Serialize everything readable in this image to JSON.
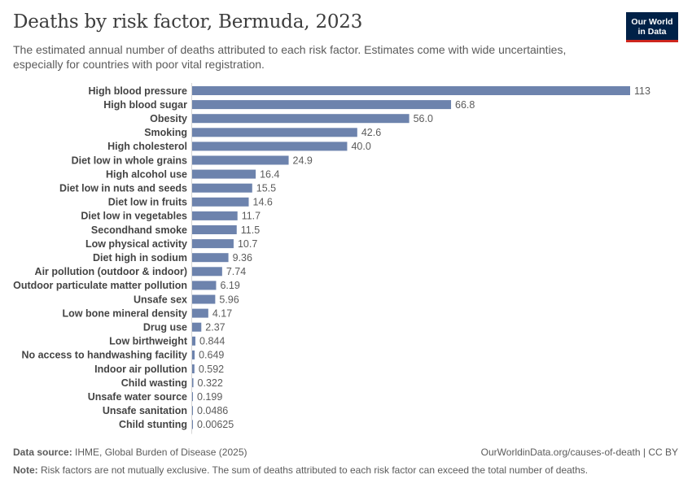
{
  "header": {
    "title": "Deaths by risk factor, Bermuda, 2023",
    "subtitle": "The estimated annual number of deaths attributed to each risk factor. Estimates come with wide uncertainties, especially for countries with poor vital registration."
  },
  "logo": {
    "line1": "Our World",
    "line2": "in Data"
  },
  "chart_data": {
    "type": "bar",
    "orientation": "horizontal",
    "categories": [
      "High blood pressure",
      "High blood sugar",
      "Obesity",
      "Smoking",
      "High cholesterol",
      "Diet low in whole grains",
      "High alcohol use",
      "Diet low in nuts and seeds",
      "Diet low in fruits",
      "Diet low in vegetables",
      "Secondhand smoke",
      "Low physical activity",
      "Diet high in sodium",
      "Air pollution (outdoor & indoor)",
      "Outdoor particulate matter pollution",
      "Unsafe sex",
      "Low bone mineral density",
      "Drug use",
      "Low birthweight",
      "No access to handwashing facility",
      "Indoor air pollution",
      "Child wasting",
      "Unsafe water source",
      "Unsafe sanitation",
      "Child stunting"
    ],
    "values": [
      113,
      66.8,
      56.0,
      42.6,
      40.0,
      24.9,
      16.4,
      15.5,
      14.6,
      11.7,
      11.5,
      10.7,
      9.36,
      7.74,
      6.19,
      5.96,
      4.17,
      2.37,
      0.844,
      0.649,
      0.592,
      0.322,
      0.199,
      0.0486,
      0.00625
    ],
    "value_labels": [
      "113",
      "66.8",
      "56.0",
      "42.6",
      "40.0",
      "24.9",
      "16.4",
      "15.5",
      "14.6",
      "11.7",
      "11.5",
      "10.7",
      "9.36",
      "7.74",
      "6.19",
      "5.96",
      "4.17",
      "2.37",
      "0.844",
      "0.649",
      "0.592",
      "0.322",
      "0.199",
      "0.0486",
      "0.00625"
    ],
    "xlim": [
      0,
      113
    ],
    "grid": false,
    "bar_color": "#6d83ad"
  },
  "footer": {
    "source_label": "Data source:",
    "source_text": "IHME, Global Burden of Disease (2025)",
    "url": "OurWorldinData.org/causes-of-death | CC BY",
    "note_label": "Note:",
    "note_text": "Risk factors are not mutually exclusive. The sum of deaths attributed to each risk factor can exceed the total number of deaths."
  }
}
